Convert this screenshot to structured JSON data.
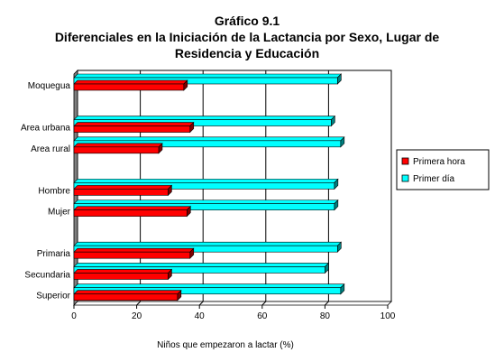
{
  "chart_data": {
    "type": "bar",
    "orientation": "horizontal",
    "title": [
      "Gráfico 9.1",
      "Diferenciales en la Iniciación de la Lactancia por Sexo, Lugar de",
      "Residencia y Educación"
    ],
    "xlabel": "Niños que empezaron a lactar (%)",
    "ylabel": "",
    "xlim": [
      0,
      100
    ],
    "xticks": [
      0,
      20,
      40,
      60,
      80,
      100
    ],
    "grid": true,
    "legend_position": "right",
    "categories": [
      "Moquegua",
      "",
      "Area urbana",
      "Area rural",
      "",
      "Hombre",
      "Mujer",
      "",
      "Primaria",
      "Secundaria",
      "Superior"
    ],
    "series": [
      {
        "name": "Primera hora",
        "color": "#ff0000",
        "values": [
          35,
          null,
          37,
          27,
          null,
          30,
          36,
          null,
          37,
          30,
          33
        ]
      },
      {
        "name": "Primer día",
        "color": "#00ffff",
        "values": [
          84,
          null,
          82,
          85,
          null,
          83,
          83,
          null,
          84,
          80,
          85
        ]
      }
    ]
  }
}
